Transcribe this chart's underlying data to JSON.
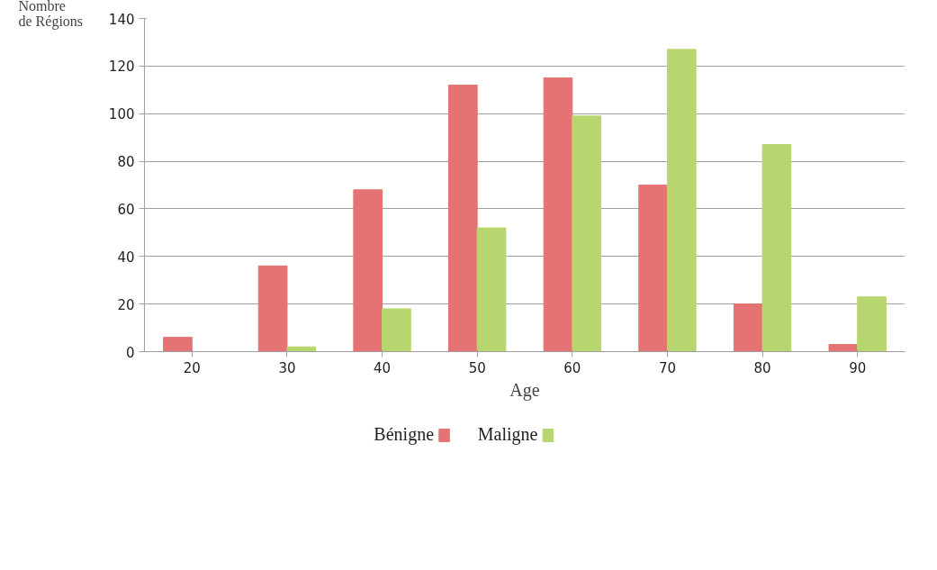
{
  "chart_data": {
    "type": "bar",
    "xlabel": "Age",
    "ylabel": "Nombre\nde Régions",
    "categories": [
      "20",
      "30",
      "40",
      "50",
      "60",
      "70",
      "80",
      "90"
    ],
    "series": [
      {
        "name": "Bénigne",
        "color": "#e57373",
        "values": [
          6,
          36,
          68,
          112,
          115,
          70,
          20,
          3
        ]
      },
      {
        "name": "Maligne",
        "color": "#b7d66f",
        "values": [
          0,
          2,
          18,
          52,
          99,
          127,
          87,
          23
        ]
      }
    ],
    "ylim": [
      0,
      140
    ],
    "yticks": [
      0,
      20,
      40,
      60,
      80,
      100,
      120,
      140
    ],
    "grid": "y",
    "legend": "bottom"
  }
}
